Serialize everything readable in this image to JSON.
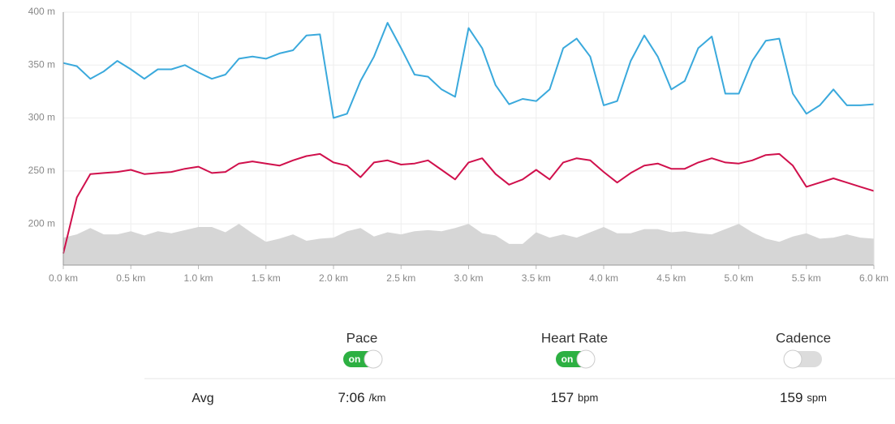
{
  "chart_data": {
    "type": "line",
    "x": [
      0,
      0.1,
      0.2,
      0.3,
      0.4,
      0.5,
      0.6,
      0.7,
      0.8,
      0.9,
      1.0,
      1.1,
      1.2,
      1.3,
      1.4,
      1.5,
      1.6,
      1.7,
      1.8,
      1.9,
      2.0,
      2.1,
      2.2,
      2.3,
      2.4,
      2.5,
      2.6,
      2.7,
      2.8,
      2.9,
      3.0,
      3.1,
      3.2,
      3.3,
      3.4,
      3.5,
      3.6,
      3.7,
      3.8,
      3.9,
      4.0,
      4.1,
      4.2,
      4.3,
      4.4,
      4.5,
      4.6,
      4.7,
      4.8,
      4.9,
      5.0,
      5.1,
      5.2,
      5.3,
      5.4,
      5.5,
      5.6,
      5.7,
      5.8,
      5.9,
      6.0
    ],
    "series": [
      {
        "color": "#3aa9dc",
        "area": false,
        "values": [
          352,
          349,
          337,
          344,
          354,
          346,
          337,
          346,
          346,
          350,
          343,
          337,
          341,
          356,
          358,
          356,
          361,
          364,
          378,
          379,
          300,
          304,
          335,
          358,
          390,
          366,
          341,
          339,
          327,
          320,
          385,
          366,
          331,
          313,
          318,
          316,
          327,
          366,
          375,
          358,
          312,
          316,
          354,
          378,
          358,
          327,
          335,
          366,
          377,
          323,
          323,
          354,
          373,
          375,
          323,
          304,
          312,
          327,
          312,
          312,
          313
        ]
      },
      {
        "color": "#d0104c",
        "area": false,
        "values": [
          172,
          225,
          247,
          248,
          249,
          251,
          247,
          248,
          249,
          252,
          254,
          248,
          249,
          257,
          259,
          257,
          255,
          260,
          264,
          266,
          258,
          255,
          244,
          258,
          260,
          256,
          257,
          260,
          251,
          242,
          258,
          262,
          247,
          237,
          242,
          251,
          242,
          258,
          262,
          260,
          249,
          239,
          248,
          255,
          257,
          252,
          252,
          258,
          262,
          258,
          257,
          260,
          265,
          266,
          255,
          235,
          239,
          243,
          239,
          235,
          231
        ]
      },
      {
        "color": "#d6d6d6",
        "area": true,
        "values": [
          187,
          190,
          196,
          190,
          190,
          193,
          189,
          193,
          191,
          194,
          197,
          197,
          192,
          200,
          191,
          183,
          186,
          190,
          184,
          186,
          187,
          193,
          196,
          188,
          192,
          190,
          193,
          194,
          193,
          196,
          200,
          191,
          189,
          181,
          181,
          192,
          187,
          190,
          187,
          192,
          197,
          191,
          191,
          195,
          195,
          192,
          193,
          191,
          190,
          195,
          200,
          192,
          186,
          183,
          188,
          191,
          186,
          187,
          190,
          187,
          186
        ]
      }
    ],
    "xlim": [
      0,
      6.0
    ],
    "ylim": [
      161,
      400
    ],
    "xticks": [
      {
        "value": 0,
        "label": "0.0 km"
      },
      {
        "value": 0.5,
        "label": "0.5 km"
      },
      {
        "value": 1.0,
        "label": "1.0 km"
      },
      {
        "value": 1.5,
        "label": "1.5 km"
      },
      {
        "value": 2.0,
        "label": "2.0 km"
      },
      {
        "value": 2.5,
        "label": "2.5 km"
      },
      {
        "value": 3.0,
        "label": "3.0 km"
      },
      {
        "value": 3.5,
        "label": "3.5 km"
      },
      {
        "value": 4.0,
        "label": "4.0 km"
      },
      {
        "value": 4.5,
        "label": "4.5 km"
      },
      {
        "value": 5.0,
        "label": "5.0 km"
      },
      {
        "value": 5.5,
        "label": "5.5 km"
      },
      {
        "value": 6.0,
        "label": "6.0 km"
      }
    ],
    "yticks": [
      {
        "value": 200,
        "label": "200 m"
      },
      {
        "value": 250,
        "label": "250 m"
      },
      {
        "value": 300,
        "label": "300 m"
      },
      {
        "value": 350,
        "label": "350 m"
      },
      {
        "value": 400,
        "label": "400 m"
      }
    ],
    "grid": true
  },
  "controls": {
    "toggle_text": "on",
    "toggles": [
      {
        "label": "Pace",
        "enabled": true
      },
      {
        "label": "Heart Rate",
        "enabled": true
      },
      {
        "label": "Cadence",
        "enabled": false
      }
    ]
  },
  "stats": {
    "row_label": "Avg",
    "items": [
      {
        "value": "7:06",
        "unit": "/km"
      },
      {
        "value": "157",
        "unit": "bpm"
      },
      {
        "value": "159",
        "unit": "spm"
      }
    ]
  }
}
